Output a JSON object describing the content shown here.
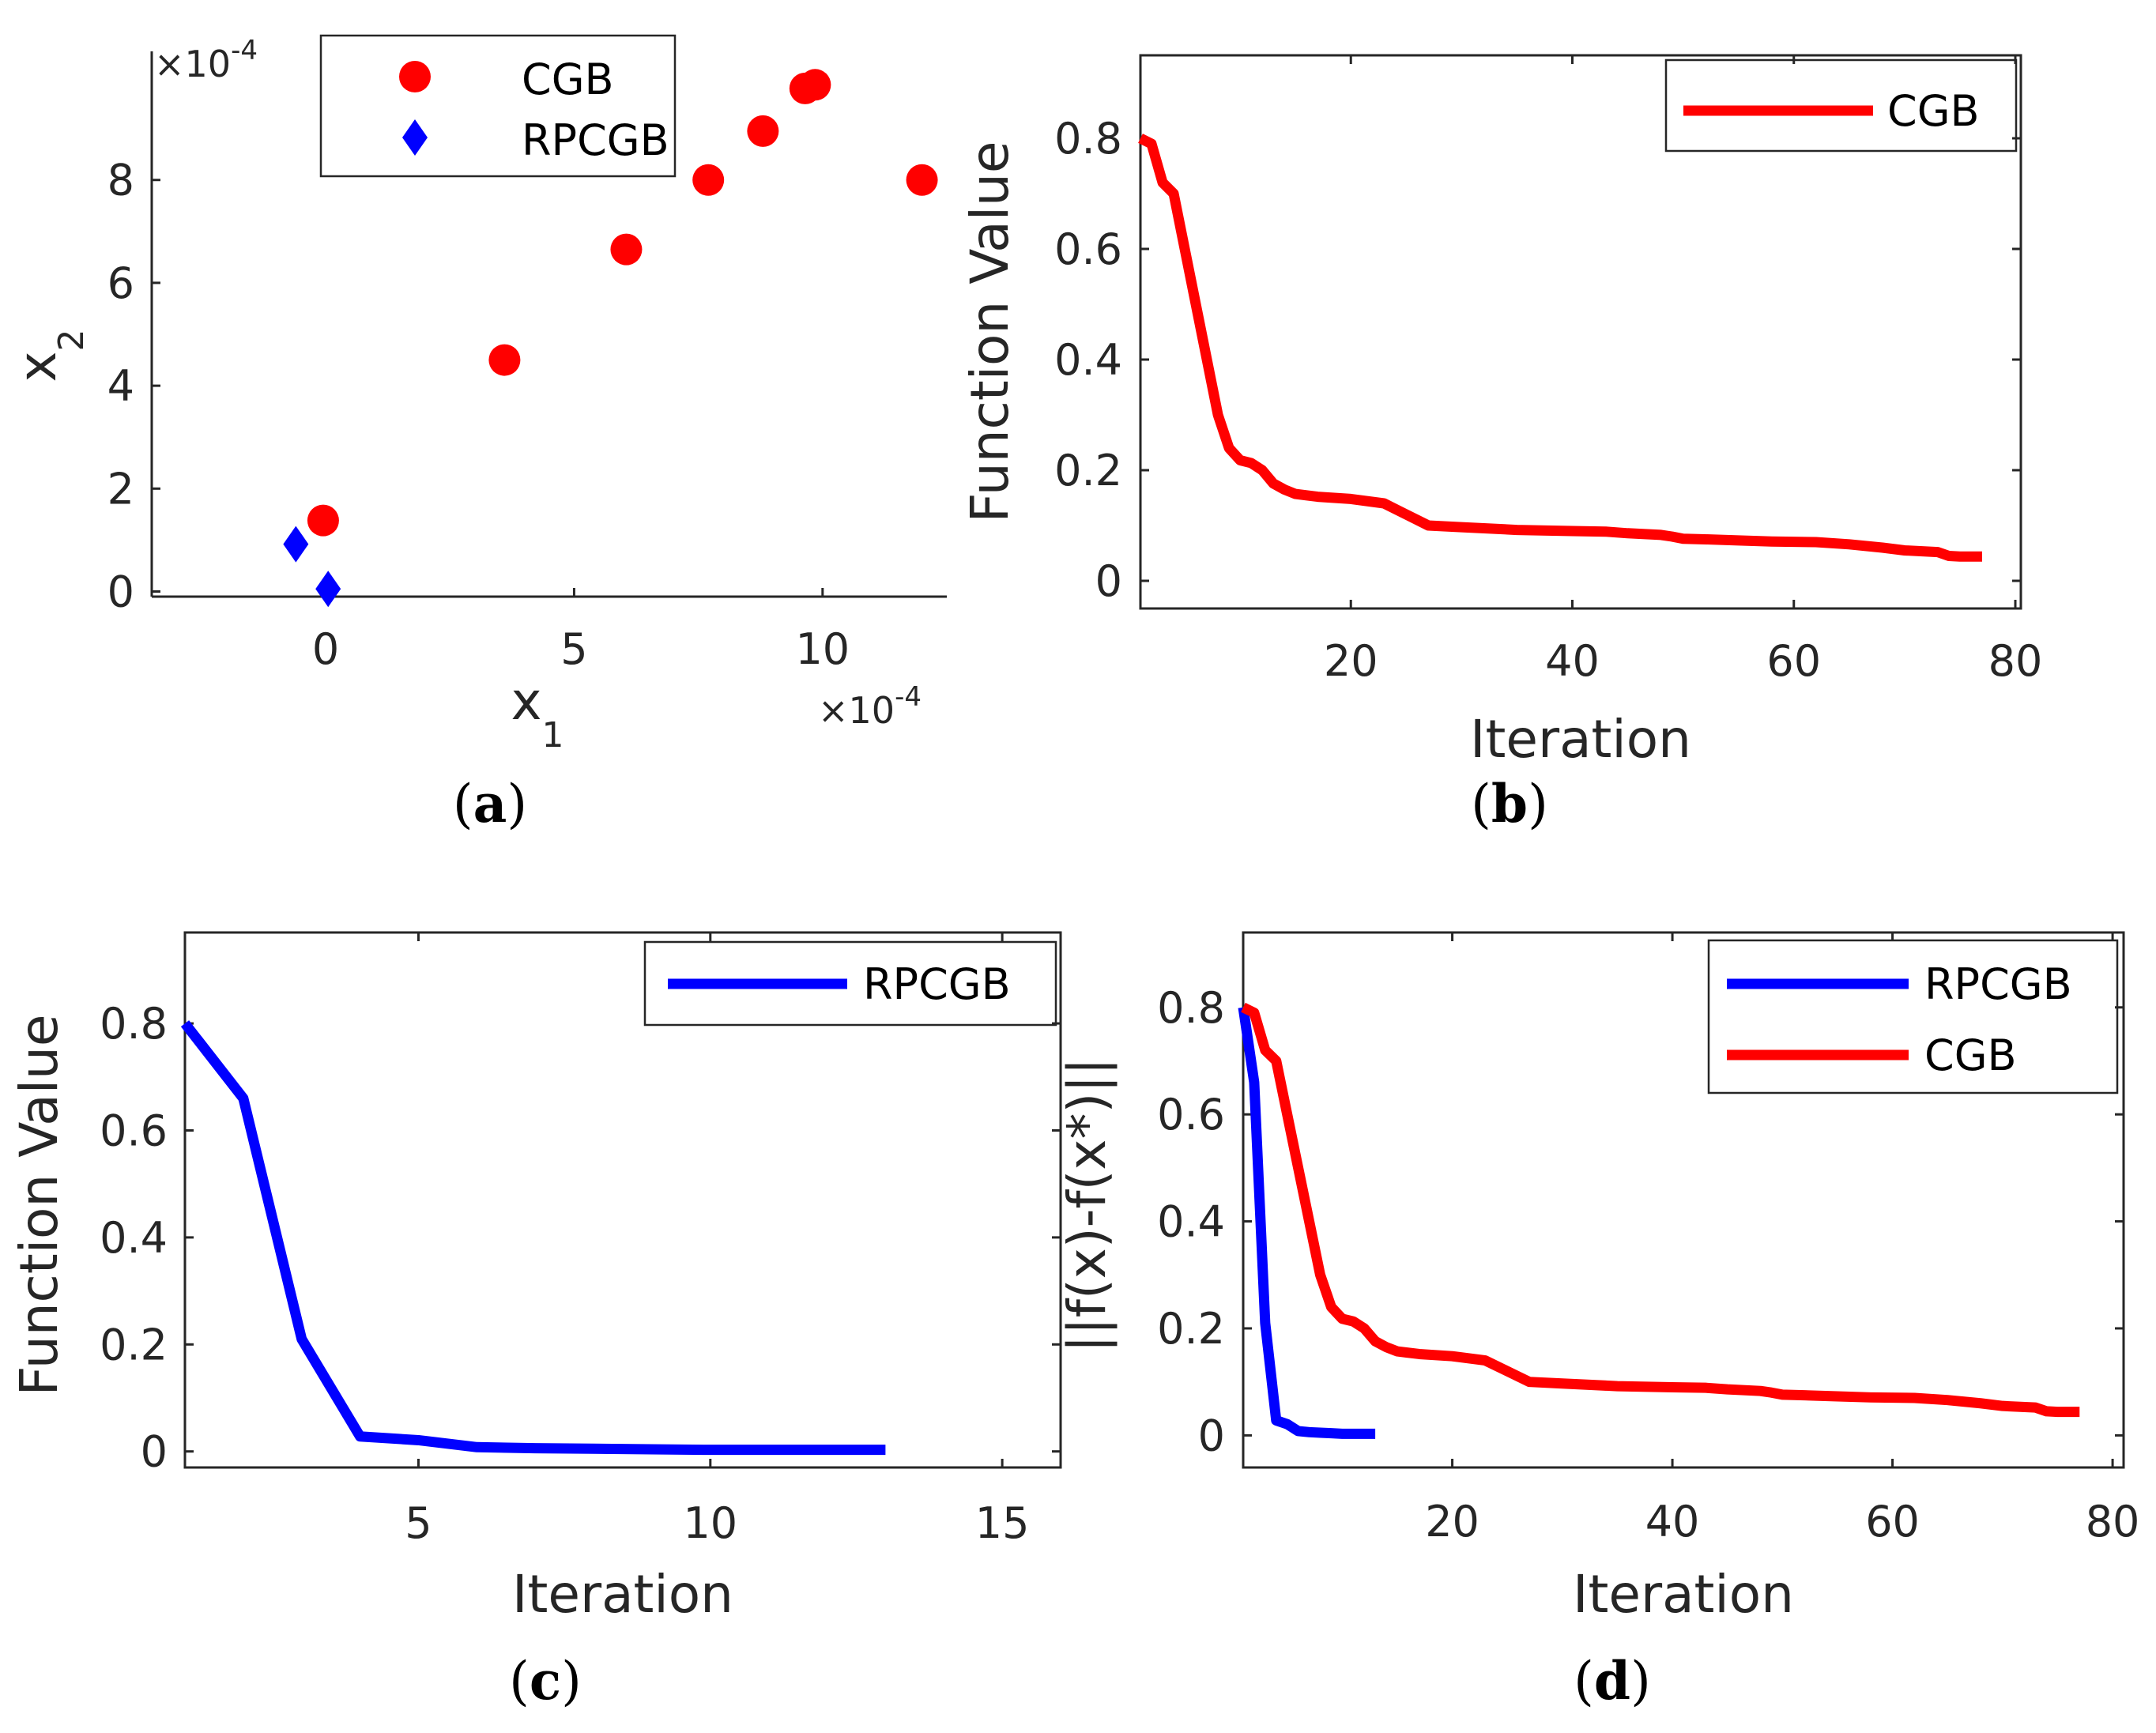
{
  "chart_data": [
    {
      "id": "a",
      "type": "scatter",
      "caption": "a",
      "xlabel": "x",
      "xlabel_sub": "1",
      "ylabel": "x",
      "ylabel_sub": "2",
      "x_multiplier": "×10",
      "x_multiplier_exp": "-4",
      "y_multiplier": "×10",
      "y_multiplier_exp": "-4",
      "xlim": [
        -3.5,
        12.5
      ],
      "ylim": [
        -0.1,
        10.5
      ],
      "xticks": [
        0,
        5,
        10
      ],
      "yticks": [
        0,
        2,
        4,
        6,
        8
      ],
      "colors": {
        "CGB": "#ff0000",
        "RPCGB": "#0000ff"
      },
      "series": [
        {
          "name": "CGB",
          "marker": "circle",
          "points": [
            [
              -0.05,
              1.38
            ],
            [
              3.6,
              4.5
            ],
            [
              6.05,
              6.65
            ],
            [
              7.7,
              8.0
            ],
            [
              8.8,
              8.95
            ],
            [
              9.65,
              9.78
            ],
            [
              9.85,
              9.85
            ],
            [
              12.0,
              8.0
            ]
          ]
        },
        {
          "name": "RPCGB",
          "marker": "diamond",
          "points": [
            [
              -0.6,
              0.92
            ],
            [
              0.05,
              0.05
            ]
          ]
        }
      ],
      "legend": [
        "CGB",
        "RPCGB"
      ],
      "legend_position": "top-center"
    },
    {
      "id": "b",
      "type": "line",
      "caption": "b",
      "xlabel": "Iteration",
      "ylabel": "Function Value",
      "xlim": [
        1,
        80.5
      ],
      "ylim": [
        -0.05,
        0.95
      ],
      "xticks": [
        20,
        40,
        60,
        80
      ],
      "yticks": [
        0,
        0.2,
        0.4,
        0.6,
        0.8
      ],
      "ytick_labels": [
        "0",
        "0.2",
        "0.4",
        "0.6",
        "0.8"
      ],
      "colors": {
        "CGB": "#ff0000"
      },
      "series": [
        {
          "name": "CGB",
          "x": [
            1,
            2,
            3,
            4,
            5,
            6,
            7,
            8,
            9,
            10,
            11,
            12,
            13,
            14,
            15,
            17,
            20,
            23,
            27,
            30,
            35,
            40,
            43,
            45,
            48,
            49,
            50,
            52,
            55,
            58,
            62,
            65,
            68,
            70,
            73,
            74,
            75,
            77
          ],
          "values": [
            0.8,
            0.79,
            0.72,
            0.7,
            0.6,
            0.5,
            0.4,
            0.3,
            0.24,
            0.218,
            0.213,
            0.2,
            0.176,
            0.165,
            0.157,
            0.152,
            0.148,
            0.14,
            0.1,
            0.097,
            0.092,
            0.09,
            0.089,
            0.086,
            0.083,
            0.08,
            0.076,
            0.075,
            0.073,
            0.071,
            0.07,
            0.066,
            0.06,
            0.055,
            0.052,
            0.045,
            0.044,
            0.044
          ]
        }
      ],
      "legend": [
        "CGB"
      ],
      "legend_position": "top-right"
    },
    {
      "id": "c",
      "type": "line",
      "caption": "c",
      "xlabel": "Iteration",
      "ylabel": "Function Value",
      "xlim": [
        1,
        16
      ],
      "ylim": [
        -0.03,
        0.97
      ],
      "xticks": [
        5,
        10,
        15
      ],
      "yticks": [
        0,
        0.2,
        0.4,
        0.6,
        0.8
      ],
      "ytick_labels": [
        "0",
        "0.2",
        "0.4",
        "0.6",
        "0.8"
      ],
      "colors": {
        "RPCGB": "#0000ff"
      },
      "series": [
        {
          "name": "RPCGB",
          "x": [
            1,
            2,
            3,
            4,
            5,
            6,
            7,
            8,
            9,
            10,
            11,
            12,
            13
          ],
          "values": [
            0.8,
            0.66,
            0.21,
            0.028,
            0.021,
            0.008,
            0.006,
            0.005,
            0.004,
            0.003,
            0.003,
            0.003,
            0.003
          ]
        }
      ],
      "legend": [
        "RPCGB"
      ],
      "legend_position": "top-right"
    },
    {
      "id": "d",
      "type": "line",
      "caption": "d",
      "xlabel": "Iteration",
      "ylabel": "||f(x)-f(x*)||",
      "xlim": [
        1,
        81
      ],
      "ylim": [
        -0.06,
        0.94
      ],
      "xticks": [
        20,
        40,
        60,
        80
      ],
      "yticks": [
        0,
        0.2,
        0.4,
        0.6,
        0.8
      ],
      "ytick_labels": [
        "0",
        "0.2",
        "0.4",
        "0.6",
        "0.8"
      ],
      "colors": {
        "RPCGB": "#0000ff",
        "CGB": "#ff0000"
      },
      "series": [
        {
          "name": "RPCGB",
          "x": [
            1,
            2,
            3,
            4,
            5,
            6,
            7,
            8,
            9,
            10,
            11,
            12,
            13
          ],
          "values": [
            0.8,
            0.66,
            0.21,
            0.028,
            0.021,
            0.008,
            0.006,
            0.005,
            0.004,
            0.003,
            0.003,
            0.003,
            0.003
          ]
        },
        {
          "name": "CGB",
          "x": [
            1,
            2,
            3,
            4,
            5,
            6,
            7,
            8,
            9,
            10,
            11,
            12,
            13,
            14,
            15,
            17,
            20,
            23,
            27,
            30,
            35,
            40,
            43,
            45,
            48,
            49,
            50,
            52,
            55,
            58,
            62,
            65,
            68,
            70,
            73,
            74,
            75,
            77
          ],
          "values": [
            0.8,
            0.79,
            0.72,
            0.7,
            0.6,
            0.5,
            0.4,
            0.3,
            0.24,
            0.218,
            0.213,
            0.2,
            0.176,
            0.165,
            0.157,
            0.152,
            0.148,
            0.14,
            0.1,
            0.097,
            0.092,
            0.09,
            0.089,
            0.086,
            0.083,
            0.08,
            0.076,
            0.075,
            0.073,
            0.071,
            0.07,
            0.066,
            0.06,
            0.055,
            0.052,
            0.045,
            0.044,
            0.044
          ]
        }
      ],
      "legend": [
        "RPCGB",
        "CGB"
      ],
      "legend_position": "top-right"
    }
  ]
}
